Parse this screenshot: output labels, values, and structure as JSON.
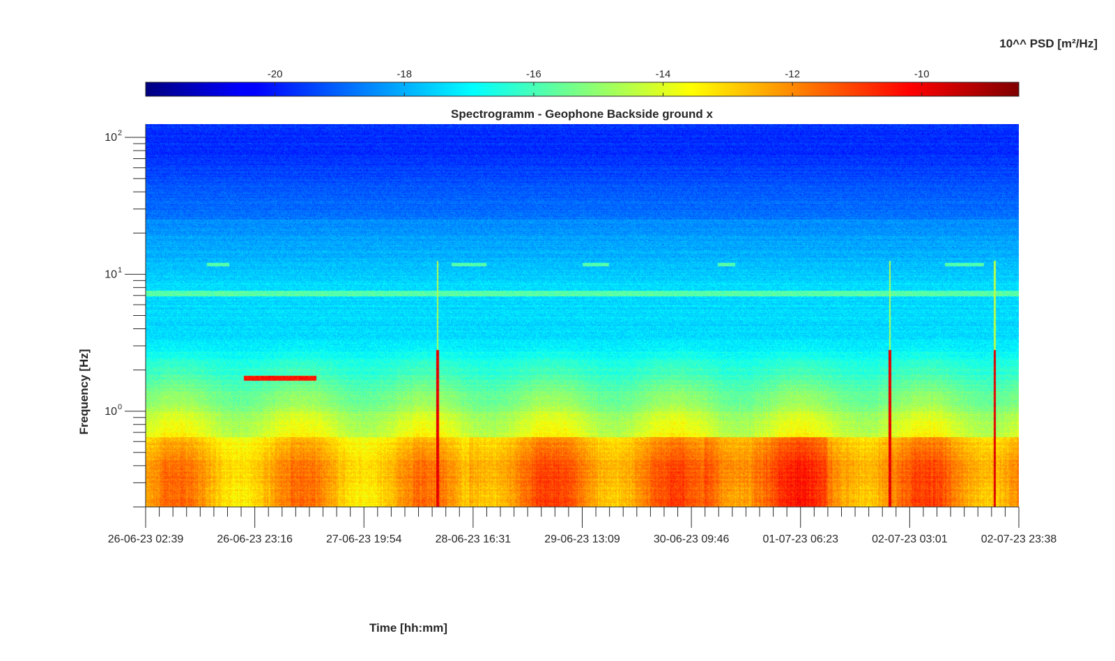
{
  "chart_data": {
    "type": "heatmap",
    "title": "Spectrogramm - Geophone Backside ground x",
    "xlabel": "Time [hh:mm]",
    "ylabel": "Frequency [Hz]",
    "colorbar": {
      "label": "10^^ PSD [m²/Hz]",
      "colormap": "jet",
      "range": [
        -22,
        -8.5
      ],
      "ticks": [
        -20,
        -18,
        -16,
        -14,
        -12,
        -10
      ],
      "tick_labels": [
        "-20",
        "-18",
        "-16",
        "-14",
        "-12",
        "-10"
      ],
      "location": "top"
    },
    "x_ticks": [
      "26-06-23 02:39",
      "26-06-23 23:16",
      "27-06-23 19:54",
      "28-06-23 16:31",
      "29-06-23 13:09",
      "30-06-23 09:46",
      "01-07-23 06:23",
      "02-07-23 03:01",
      "02-07-23 23:38"
    ],
    "y_scale": "log",
    "y_range": [
      0.2,
      125
    ],
    "y_ticks": [
      1,
      10,
      100
    ],
    "y_tick_labels": [
      "10",
      "10",
      "10"
    ],
    "y_tick_exponents": [
      "0",
      "1",
      "2"
    ],
    "grid": false,
    "features": {
      "persistent_band_hz": 7.3,
      "intermittent_band_hz": 11.8,
      "tone_band": {
        "hz": 1.75,
        "t_from": 0.112,
        "t_to": 0.195
      },
      "broadband_events_t": [
        0.334,
        0.852,
        0.972
      ],
      "high_psd_region_hz_below": 0.65
    }
  }
}
